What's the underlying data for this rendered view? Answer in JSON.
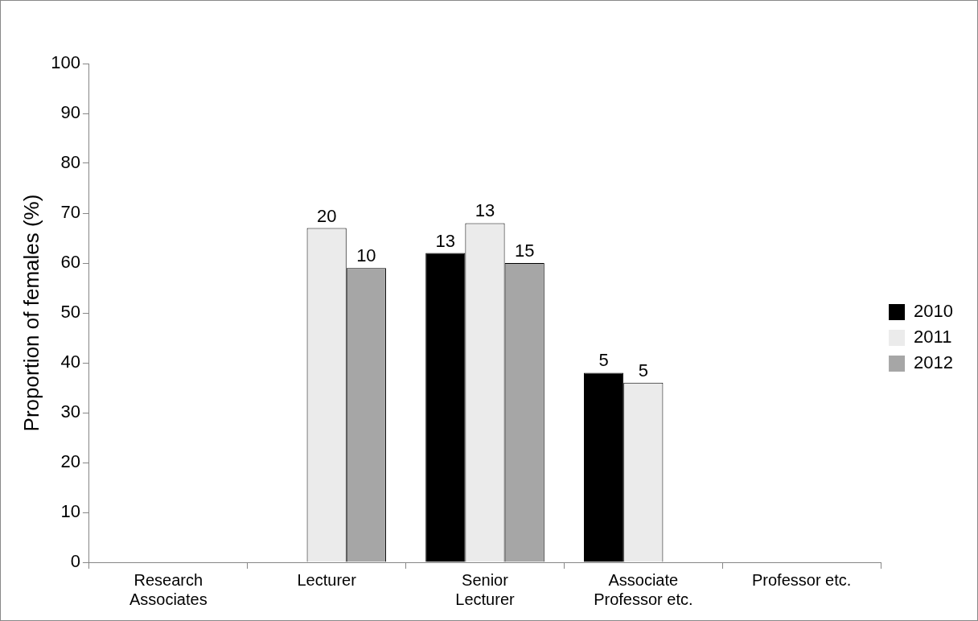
{
  "chart_data": {
    "type": "bar",
    "ylabel": "Proportion of females (%)",
    "categories": [
      "Research Associates",
      "Lecturer",
      "Senior Lecturer",
      "Associate Professor etc.",
      "Professor etc."
    ],
    "series": [
      {
        "name": "2010",
        "color": "#000000",
        "values": [
          null,
          null,
          62,
          38,
          null
        ]
      },
      {
        "name": "2011",
        "color": "#ebebeb",
        "values": [
          null,
          67,
          68,
          36,
          null
        ]
      },
      {
        "name": "2012",
        "color": "#a6a6a6",
        "values": [
          null,
          59,
          60,
          null,
          null
        ]
      }
    ],
    "annotations": [
      "20",
      "10",
      "13",
      "13",
      "15",
      "5",
      "5"
    ],
    "ylim": [
      0,
      100
    ],
    "yticks": [
      0,
      10,
      20,
      30,
      40,
      50,
      60,
      70,
      80,
      90,
      100
    ],
    "grid": false,
    "legend": "right"
  }
}
